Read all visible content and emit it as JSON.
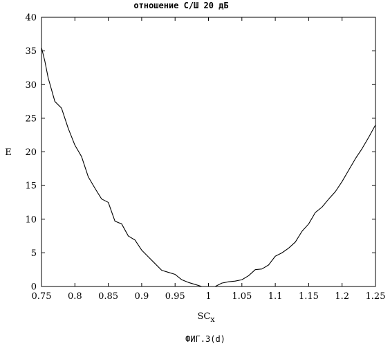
{
  "title": "отношение С/Ш  20 дБ",
  "caption": "ФИГ.3(d)",
  "chart_data": {
    "type": "line",
    "title": "отношение С/Ш  20 дБ",
    "xlabel_main": "SC",
    "xlabel_sub": "x",
    "ylabel": "E",
    "xlim": [
      0.75,
      1.25
    ],
    "ylim": [
      0,
      40
    ],
    "xticks": [
      "0.75",
      "0.8",
      "0.85",
      "0.9",
      "0.95",
      "1",
      "1.05",
      "1.1",
      "1.15",
      "1.2",
      "1.25"
    ],
    "yticks": [
      "0",
      "5",
      "10",
      "15",
      "20",
      "25",
      "30",
      "35",
      "40"
    ],
    "grid": false,
    "series": [
      {
        "color": "#000000",
        "x": [
          0.75,
          0.755,
          0.76,
          0.77,
          0.78,
          0.79,
          0.8,
          0.81,
          0.82,
          0.83,
          0.84,
          0.85,
          0.86,
          0.87,
          0.88,
          0.89,
          0.9,
          0.91,
          0.92,
          0.93,
          0.94,
          0.95,
          0.96,
          0.97,
          0.98,
          0.99,
          1.0,
          1.01,
          1.02,
          1.03,
          1.04,
          1.05,
          1.06,
          1.07,
          1.08,
          1.09,
          1.1,
          1.11,
          1.12,
          1.13,
          1.14,
          1.15,
          1.16,
          1.17,
          1.18,
          1.19,
          1.2,
          1.21,
          1.22,
          1.23,
          1.24,
          1.25
        ],
        "y": [
          35.5,
          33.5,
          31.0,
          27.5,
          26.5,
          23.5,
          21.0,
          19.3,
          16.3,
          14.6,
          13.0,
          12.5,
          9.7,
          9.3,
          7.5,
          6.9,
          5.4,
          4.4,
          3.4,
          2.4,
          2.1,
          1.8,
          1.0,
          0.6,
          0.3,
          0.0,
          0.0,
          0.0,
          0.5,
          0.7,
          0.8,
          1.0,
          1.6,
          2.5,
          2.6,
          3.2,
          4.5,
          5.0,
          5.7,
          6.6,
          8.2,
          9.3,
          11.0,
          11.8,
          13.0,
          14.1,
          15.6,
          17.3,
          19.0,
          20.5,
          22.2,
          24.0
        ]
      }
    ]
  }
}
